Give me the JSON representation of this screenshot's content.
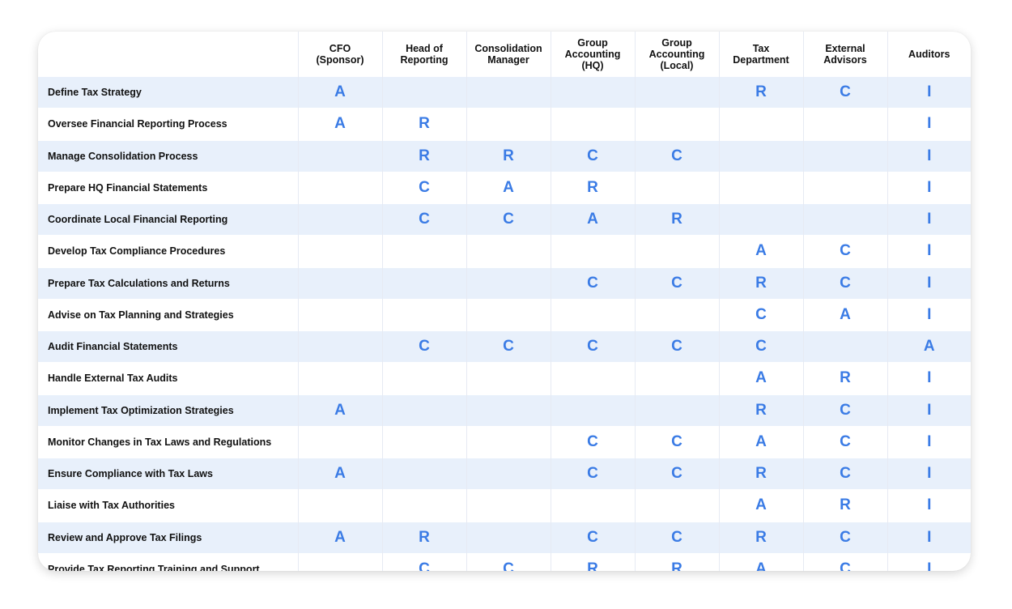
{
  "header": {
    "task": "",
    "roles": [
      "CFO\n(Sponsor)",
      "Head of\nReporting",
      "Consolidation\nManager",
      "Group\nAccounting\n(HQ)",
      "Group\nAccounting\n(Local)",
      "Tax\nDepartment",
      "External\nAdvisors",
      "Auditors"
    ]
  },
  "rows": [
    {
      "task": "Define Tax Strategy",
      "cells": [
        "A",
        "",
        "",
        "",
        "",
        "R",
        "C",
        "I"
      ]
    },
    {
      "task": "Oversee Financial Reporting Process",
      "cells": [
        "A",
        "R",
        "",
        "",
        "",
        "",
        "",
        "I"
      ]
    },
    {
      "task": "Manage Consolidation Process",
      "cells": [
        "",
        "R",
        "R",
        "C",
        "C",
        "",
        "",
        "I"
      ]
    },
    {
      "task": "Prepare HQ Financial Statements",
      "cells": [
        "",
        "C",
        "A",
        "R",
        "",
        "",
        "",
        "I"
      ]
    },
    {
      "task": "Coordinate Local Financial Reporting",
      "cells": [
        "",
        "C",
        "C",
        "A",
        "R",
        "",
        "",
        "I"
      ]
    },
    {
      "task": "Develop Tax Compliance Procedures",
      "cells": [
        "",
        "",
        "",
        "",
        "",
        "A",
        "C",
        "I"
      ]
    },
    {
      "task": "Prepare Tax Calculations and Returns",
      "cells": [
        "",
        "",
        "",
        "C",
        "C",
        "R",
        "C",
        "I"
      ]
    },
    {
      "task": "Advise on Tax Planning and Strategies",
      "cells": [
        "",
        "",
        "",
        "",
        "",
        "C",
        "A",
        "I"
      ]
    },
    {
      "task": "Audit Financial Statements",
      "cells": [
        "",
        "C",
        "C",
        "C",
        "C",
        "C",
        "",
        "A"
      ]
    },
    {
      "task": "Handle External Tax Audits",
      "cells": [
        "",
        "",
        "",
        "",
        "",
        "A",
        "R",
        "I"
      ]
    },
    {
      "task": "Implement Tax Optimization Strategies",
      "cells": [
        "A",
        "",
        "",
        "",
        "",
        "R",
        "C",
        "I"
      ]
    },
    {
      "task": "Monitor Changes in Tax Laws and Regulations",
      "cells": [
        "",
        "",
        "",
        "C",
        "C",
        "A",
        "C",
        "I"
      ]
    },
    {
      "task": "Ensure Compliance with Tax Laws",
      "cells": [
        "A",
        "",
        "",
        "C",
        "C",
        "R",
        "C",
        "I"
      ]
    },
    {
      "task": "Liaise with Tax Authorities",
      "cells": [
        "",
        "",
        "",
        "",
        "",
        "A",
        "R",
        "I"
      ]
    },
    {
      "task": "Review and Approve Tax Filings",
      "cells": [
        "A",
        "R",
        "",
        "C",
        "C",
        "R",
        "C",
        "I"
      ]
    },
    {
      "task": "Provide Tax Reporting Training and Support",
      "cells": [
        "",
        "C",
        "C",
        "R",
        "R",
        "A",
        "C",
        "I"
      ]
    }
  ],
  "colors": {
    "accent": "#3a7be5",
    "row_shade": "#e8f0fb",
    "text": "#111111"
  }
}
